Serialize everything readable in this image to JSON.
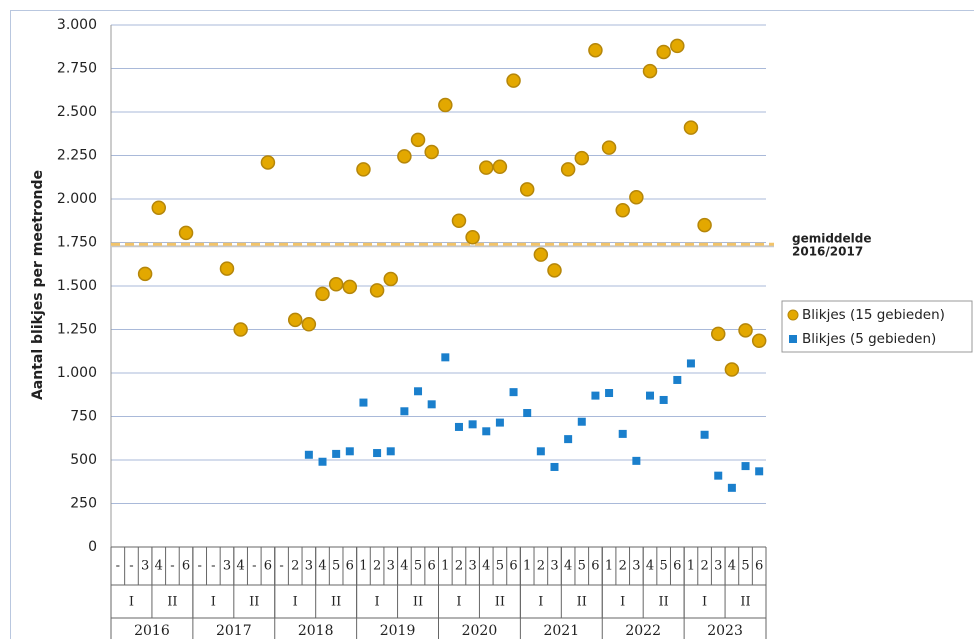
{
  "chart_data": {
    "type": "scatter",
    "y_label": "Aantal blikjes per meetronde",
    "categories": [
      "-",
      "-",
      "3",
      "4",
      "-",
      "6",
      "-",
      "-",
      "3",
      "4",
      "-",
      "6",
      "-",
      "2",
      "3",
      "4",
      "5",
      "6",
      "1",
      "2",
      "3",
      "4",
      "5",
      "6",
      "1",
      "2",
      "3",
      "4",
      "5",
      "6",
      "1",
      "2",
      "3",
      "4",
      "5",
      "6",
      "1",
      "2",
      "3",
      "4",
      "5",
      "6",
      "1",
      "2",
      "3",
      "4",
      "5",
      "6"
    ],
    "halves": [
      "I",
      "II",
      "I",
      "II",
      "I",
      "II",
      "I",
      "II",
      "I",
      "II",
      "I",
      "II",
      "I",
      "II",
      "I",
      "II"
    ],
    "years": [
      "2016",
      "2017",
      "2018",
      "2019",
      "2020",
      "2021",
      "2022",
      "2023"
    ],
    "series": [
      {
        "name": "Blikjes (15 gebieden)",
        "color": "#e3a800",
        "marker": "circle",
        "values": [
          null,
          null,
          1570,
          1950,
          null,
          1805,
          null,
          null,
          1600,
          1250,
          null,
          2210,
          null,
          1305,
          1280,
          1455,
          1510,
          1495,
          2170,
          1475,
          1540,
          2245,
          2340,
          2270,
          2540,
          1875,
          1780,
          2180,
          2185,
          2680,
          2055,
          1680,
          1590,
          2170,
          2235,
          2855,
          2295,
          1935,
          2010,
          2735,
          2845,
          2880,
          2410,
          1850,
          1225,
          1020,
          1245,
          1185
        ]
      },
      {
        "name": "Blikjes (5 gebieden)",
        "color": "#1a7fcc",
        "marker": "square",
        "values": [
          null,
          null,
          null,
          null,
          null,
          null,
          null,
          null,
          null,
          null,
          null,
          null,
          null,
          null,
          530,
          490,
          535,
          550,
          830,
          540,
          550,
          780,
          895,
          820,
          1090,
          690,
          705,
          665,
          715,
          890,
          770,
          550,
          460,
          620,
          720,
          870,
          885,
          650,
          495,
          870,
          845,
          960,
          1055,
          645,
          410,
          340,
          465,
          435
        ]
      }
    ],
    "reference_line": {
      "value": 1740,
      "label": [
        "gemiddelde",
        "2016/2017"
      ],
      "color": "#f2c46a"
    },
    "ylim": [
      0,
      3000
    ],
    "yticks": [
      0,
      250,
      500,
      750,
      {
        "value": 1000,
        "label": "1.000"
      },
      {
        "value": 1250,
        "label": "1.250"
      },
      {
        "value": 1500,
        "label": "1.500"
      },
      {
        "value": 1750,
        "label": "1.750"
      },
      {
        "value": 2000,
        "label": "2.000"
      },
      {
        "value": 2250,
        "label": "2.250"
      },
      {
        "value": 2500,
        "label": "2.500"
      },
      {
        "value": 2750,
        "label": "2.750"
      },
      {
        "value": 3000,
        "label": "3.000"
      }
    ],
    "grid": true,
    "legend": "right"
  }
}
